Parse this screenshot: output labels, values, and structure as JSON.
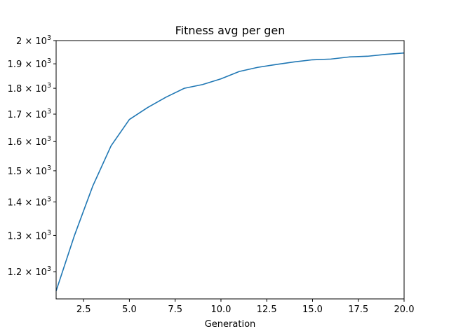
{
  "chart_data": {
    "type": "line",
    "title": "Fitness avg per gen",
    "xlabel": "Generation",
    "ylabel": "",
    "xlim": [
      1,
      20
    ],
    "ylim": [
      1130,
      2000
    ],
    "yscale": "log",
    "grid": false,
    "x_ticks": [
      {
        "value": 2.5,
        "label": "2.5"
      },
      {
        "value": 5.0,
        "label": "5.0"
      },
      {
        "value": 7.5,
        "label": "7.5"
      },
      {
        "value": 10.0,
        "label": "10.0"
      },
      {
        "value": 12.5,
        "label": "12.5"
      },
      {
        "value": 15.0,
        "label": "15.0"
      },
      {
        "value": 17.5,
        "label": "17.5"
      },
      {
        "value": 20.0,
        "label": "20.0"
      }
    ],
    "y_ticks": [
      {
        "value": 1200,
        "mantissa": "1.2",
        "base": "10",
        "exp": "3"
      },
      {
        "value": 1300,
        "mantissa": "1.3",
        "base": "10",
        "exp": "3"
      },
      {
        "value": 1400,
        "mantissa": "1.4",
        "base": "10",
        "exp": "3"
      },
      {
        "value": 1500,
        "mantissa": "1.5",
        "base": "10",
        "exp": "3"
      },
      {
        "value": 1600,
        "mantissa": "1.6",
        "base": "10",
        "exp": "3"
      },
      {
        "value": 1700,
        "mantissa": "1.7",
        "base": "10",
        "exp": "3"
      },
      {
        "value": 1800,
        "mantissa": "1.8",
        "base": "10",
        "exp": "3"
      },
      {
        "value": 1900,
        "mantissa": "1.9",
        "base": "10",
        "exp": "3"
      },
      {
        "value": 2000,
        "mantissa": "2",
        "base": "10",
        "exp": "3"
      }
    ],
    "series": [
      {
        "color": "#1f77b4",
        "x": [
          1,
          2,
          3,
          4,
          5,
          6,
          7,
          8,
          9,
          10,
          11,
          12,
          13,
          14,
          15,
          16,
          17,
          18,
          19,
          20
        ],
        "y": [
          1150,
          1300,
          1450,
          1585,
          1680,
          1725,
          1765,
          1800,
          1815,
          1838,
          1868,
          1885,
          1897,
          1908,
          1917,
          1920,
          1929,
          1932,
          1940,
          1946
        ]
      }
    ]
  }
}
